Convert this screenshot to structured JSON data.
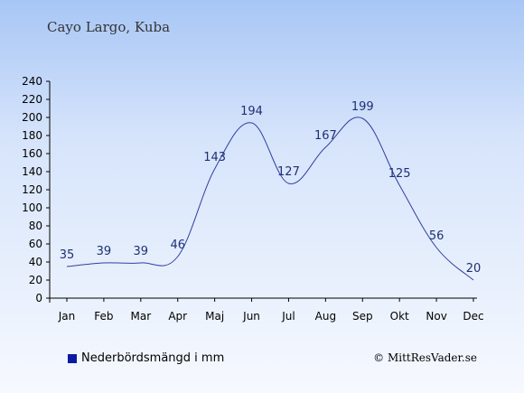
{
  "header": {
    "location": "Cayo Largo, Kuba"
  },
  "legend": {
    "label": "Nederbördsmängd i mm"
  },
  "credit": {
    "text": "© MittResVader.se"
  },
  "colors": {
    "line": "#3040a0",
    "swatch": "#0b1aa3",
    "label": "#1f2f73"
  },
  "chart_data": {
    "type": "line",
    "categories": [
      "Jan",
      "Feb",
      "Mar",
      "Apr",
      "Maj",
      "Jun",
      "Jul",
      "Aug",
      "Sep",
      "Okt",
      "Nov",
      "Dec"
    ],
    "series": [
      {
        "name": "Nederbördsmängd i mm",
        "values": [
          35,
          39,
          39,
          46,
          143,
          194,
          127,
          167,
          199,
          125,
          56,
          20
        ]
      }
    ],
    "y_ticks": [
      0,
      20,
      40,
      60,
      80,
      100,
      120,
      140,
      160,
      180,
      200,
      220,
      240
    ],
    "ylim": [
      0,
      240
    ],
    "grid": false,
    "legend_position": "bottom-left"
  }
}
